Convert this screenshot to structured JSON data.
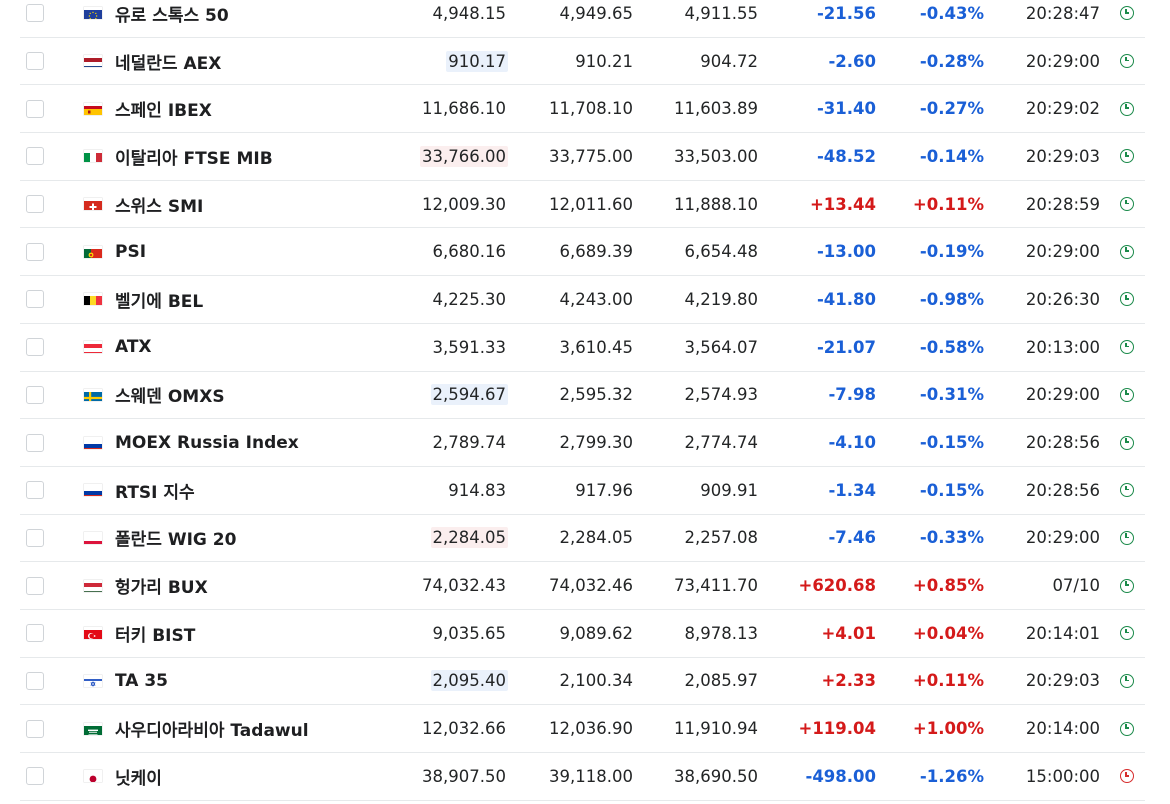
{
  "colors": {
    "negative": "#1a5fd6",
    "positive": "#d41a1a",
    "market_open": "#1b8a4a",
    "market_closed": "#d62c2c",
    "highlight_down": "#eaf1fb",
    "highlight_up": "#fbeeee"
  },
  "rows": [
    {
      "name": "유로 스톡스 50",
      "flag": "eu-flag",
      "last": "4,948.15",
      "high": "4,949.65",
      "low": "4,911.55",
      "chg": "-21.56",
      "pct": "-0.43%",
      "time": "20:28:47",
      "dir": "neg",
      "highlight": "",
      "status": "open-clock-icon"
    },
    {
      "name": "네덜란드 AEX",
      "flag": "netherlands-flag",
      "last": "910.17",
      "high": "910.21",
      "low": "904.72",
      "chg": "-2.60",
      "pct": "-0.28%",
      "time": "20:29:00",
      "dir": "neg",
      "highlight": "blue",
      "status": "open-clock-icon"
    },
    {
      "name": "스페인 IBEX",
      "flag": "spain-flag",
      "last": "11,686.10",
      "high": "11,708.10",
      "low": "11,603.89",
      "chg": "-31.40",
      "pct": "-0.27%",
      "time": "20:29:02",
      "dir": "neg",
      "highlight": "",
      "status": "open-clock-icon"
    },
    {
      "name": "이탈리아 FTSE MIB",
      "flag": "italy-flag",
      "last": "33,766.00",
      "high": "33,775.00",
      "low": "33,503.00",
      "chg": "-48.52",
      "pct": "-0.14%",
      "time": "20:29:03",
      "dir": "neg",
      "highlight": "red",
      "status": "open-clock-icon"
    },
    {
      "name": "스위스 SMI",
      "flag": "switzerland-flag",
      "last": "12,009.30",
      "high": "12,011.60",
      "low": "11,888.10",
      "chg": "+13.44",
      "pct": "+0.11%",
      "time": "20:28:59",
      "dir": "pos",
      "highlight": "",
      "status": "open-clock-icon"
    },
    {
      "name": "PSI",
      "flag": "portugal-flag",
      "last": "6,680.16",
      "high": "6,689.39",
      "low": "6,654.48",
      "chg": "-13.00",
      "pct": "-0.19%",
      "time": "20:29:00",
      "dir": "neg",
      "highlight": "",
      "status": "open-clock-icon"
    },
    {
      "name": "벨기에 BEL",
      "flag": "belgium-flag",
      "last": "4,225.30",
      "high": "4,243.00",
      "low": "4,219.80",
      "chg": "-41.80",
      "pct": "-0.98%",
      "time": "20:26:30",
      "dir": "neg",
      "highlight": "",
      "status": "open-clock-icon"
    },
    {
      "name": "ATX",
      "flag": "austria-flag",
      "last": "3,591.33",
      "high": "3,610.45",
      "low": "3,564.07",
      "chg": "-21.07",
      "pct": "-0.58%",
      "time": "20:13:00",
      "dir": "neg",
      "highlight": "",
      "status": "open-clock-icon"
    },
    {
      "name": "스웨덴 OMXS",
      "flag": "sweden-flag",
      "last": "2,594.67",
      "high": "2,595.32",
      "low": "2,574.93",
      "chg": "-7.98",
      "pct": "-0.31%",
      "time": "20:29:00",
      "dir": "neg",
      "highlight": "blue",
      "status": "open-clock-icon"
    },
    {
      "name": "MOEX Russia Index",
      "flag": "russia-flag",
      "last": "2,789.74",
      "high": "2,799.30",
      "low": "2,774.74",
      "chg": "-4.10",
      "pct": "-0.15%",
      "time": "20:28:56",
      "dir": "neg",
      "highlight": "",
      "status": "open-clock-icon"
    },
    {
      "name": "RTSI 지수",
      "flag": "russia-flag",
      "last": "914.83",
      "high": "917.96",
      "low": "909.91",
      "chg": "-1.34",
      "pct": "-0.15%",
      "time": "20:28:56",
      "dir": "neg",
      "highlight": "",
      "status": "open-clock-icon"
    },
    {
      "name": "폴란드 WIG 20",
      "flag": "poland-flag",
      "last": "2,284.05",
      "high": "2,284.05",
      "low": "2,257.08",
      "chg": "-7.46",
      "pct": "-0.33%",
      "time": "20:29:00",
      "dir": "neg",
      "highlight": "red",
      "status": "open-clock-icon"
    },
    {
      "name": "헝가리 BUX",
      "flag": "hungary-flag",
      "last": "74,032.43",
      "high": "74,032.46",
      "low": "73,411.70",
      "chg": "+620.68",
      "pct": "+0.85%",
      "time": "07/10",
      "dir": "pos",
      "highlight": "",
      "status": "open-clock-icon"
    },
    {
      "name": "터키 BIST",
      "flag": "turkey-flag",
      "last": "9,035.65",
      "high": "9,089.62",
      "low": "8,978.13",
      "chg": "+4.01",
      "pct": "+0.04%",
      "time": "20:14:01",
      "dir": "pos",
      "highlight": "",
      "status": "open-clock-icon"
    },
    {
      "name": "TA 35",
      "flag": "israel-flag",
      "last": "2,095.40",
      "high": "2,100.34",
      "low": "2,085.97",
      "chg": "+2.33",
      "pct": "+0.11%",
      "time": "20:29:03",
      "dir": "pos",
      "highlight": "blue",
      "status": "open-clock-icon"
    },
    {
      "name": "사우디아라비아 Tadawul",
      "flag": "saudi-arabia-flag",
      "last": "12,032.66",
      "high": "12,036.90",
      "low": "11,910.94",
      "chg": "+119.04",
      "pct": "+1.00%",
      "time": "20:14:00",
      "dir": "pos",
      "highlight": "",
      "status": "open-clock-icon"
    },
    {
      "name": "닛케이",
      "flag": "japan-flag",
      "last": "38,907.50",
      "high": "39,118.00",
      "low": "38,690.50",
      "chg": "-498.00",
      "pct": "-1.26%",
      "time": "15:00:00",
      "dir": "neg",
      "highlight": "",
      "status": "closed-clock-icon"
    }
  ]
}
